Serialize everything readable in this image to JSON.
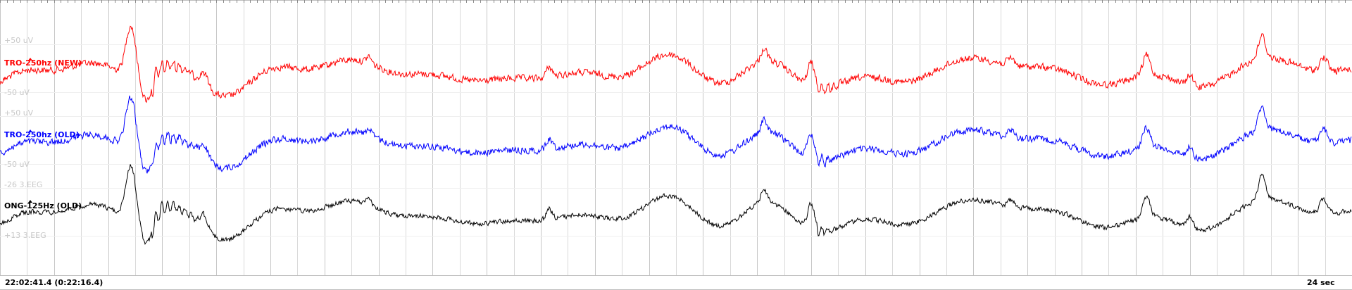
{
  "colors": {
    "background": "#ffffff",
    "grid": "#d9d9d9",
    "grid_major": "#c6c6c6",
    "scale_text": "#c8c8c8"
  },
  "channels": [
    {
      "label": "TRO-250hz (NEW)",
      "color": "#ff0000",
      "scale_top": "+50 uV",
      "scale_bottom": "-50 uV"
    },
    {
      "label": "TRO-250hz (OLD)",
      "color": "#0000ff",
      "scale_top": "+50 uV",
      "scale_bottom": "-50 uV"
    },
    {
      "label": "ONG-125Hz (OLD)",
      "color": "#000000",
      "scale_top": "-26 3.EEG",
      "scale_bottom": "+13 3.EEG"
    }
  ],
  "footer": {
    "timestamp": "22:02:41.4 (0:22:16.4)",
    "duration": "24 sec"
  }
}
